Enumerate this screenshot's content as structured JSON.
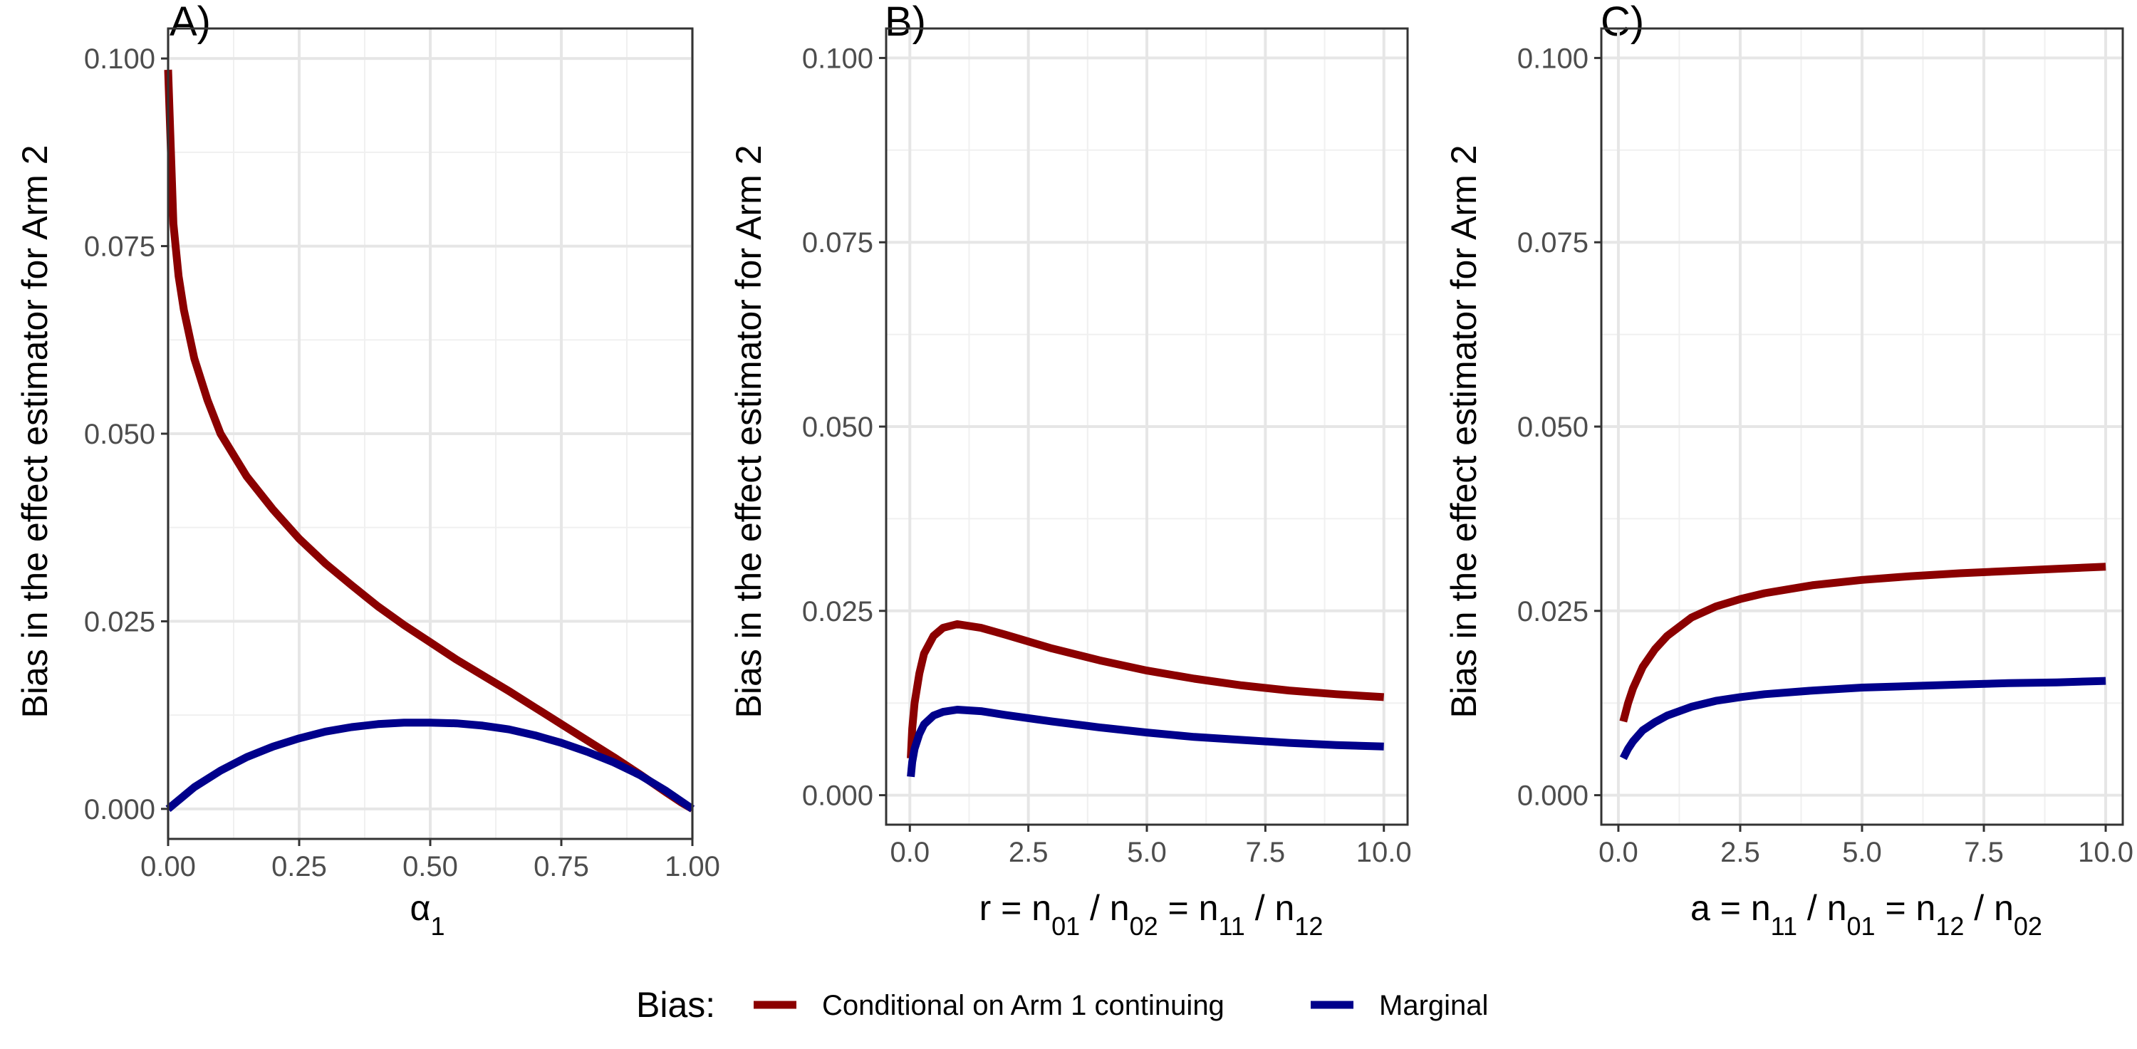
{
  "chart_data": [
    {
      "type": "line",
      "panel_label": "A)",
      "ylabel": "Bias in the effect estimator for Arm 2",
      "xlabel": "α1",
      "xlim": [
        0,
        1
      ],
      "ylim": [
        -0.004,
        0.104
      ],
      "x_ticks": [
        "0.00",
        "0.25",
        "0.50",
        "0.75",
        "1.00"
      ],
      "y_ticks": [
        "0.000",
        "0.025",
        "0.050",
        "0.075",
        "0.100"
      ],
      "series": [
        {
          "name": "Conditional on Arm 1 continuing",
          "color": "#8B0000",
          "x": [
            0.0,
            0.01,
            0.02,
            0.03,
            0.05,
            0.075,
            0.1,
            0.15,
            0.2,
            0.25,
            0.3,
            0.35,
            0.4,
            0.45,
            0.5,
            0.55,
            0.6,
            0.65,
            0.7,
            0.75,
            0.8,
            0.85,
            0.9,
            0.95,
            0.98,
            1.0
          ],
          "y": [
            0.0985,
            0.078,
            0.071,
            0.0665,
            0.06,
            0.0545,
            0.05,
            0.0443,
            0.0399,
            0.036,
            0.0327,
            0.0298,
            0.027,
            0.0245,
            0.0222,
            0.0199,
            0.0178,
            0.0157,
            0.0135,
            0.0113,
            0.0091,
            0.0069,
            0.0046,
            0.0022,
            0.0008,
            0.0
          ]
        },
        {
          "name": "Marginal",
          "color": "#00008B",
          "x": [
            0.0,
            0.05,
            0.1,
            0.15,
            0.2,
            0.25,
            0.3,
            0.35,
            0.4,
            0.45,
            0.5,
            0.55,
            0.6,
            0.65,
            0.7,
            0.75,
            0.8,
            0.85,
            0.9,
            0.95,
            1.0
          ],
          "y": [
            0.0,
            0.0029,
            0.0051,
            0.0069,
            0.0083,
            0.0094,
            0.0103,
            0.0109,
            0.0113,
            0.0115,
            0.0115,
            0.0114,
            0.0111,
            0.0106,
            0.0098,
            0.0088,
            0.0076,
            0.0062,
            0.0045,
            0.0024,
            0.0
          ]
        }
      ]
    },
    {
      "type": "line",
      "panel_label": "B)",
      "ylabel": "Bias in the effect estimator for Arm 2",
      "xlabel": "r = n01 / n02 = n11 / n12",
      "xlim": [
        -0.5,
        10.5
      ],
      "ylim": [
        -0.004,
        0.104
      ],
      "x_ticks": [
        "0.0",
        "2.5",
        "5.0",
        "7.5",
        "10.0"
      ],
      "y_ticks": [
        "0.000",
        "0.025",
        "0.050",
        "0.075",
        "0.100"
      ],
      "series": [
        {
          "name": "Conditional on Arm 1 continuing",
          "color": "#8B0000",
          "x": [
            0.02,
            0.05,
            0.1,
            0.2,
            0.3,
            0.5,
            0.7,
            1.0,
            1.5,
            2.0,
            3.0,
            4.0,
            5.0,
            6.0,
            7.0,
            8.0,
            9.0,
            10.0
          ],
          "y": [
            0.005,
            0.009,
            0.0125,
            0.0165,
            0.0192,
            0.0216,
            0.0227,
            0.0232,
            0.0227,
            0.0218,
            0.0199,
            0.0183,
            0.0169,
            0.0158,
            0.0149,
            0.0142,
            0.0137,
            0.0133
          ]
        },
        {
          "name": "Marginal",
          "color": "#00008B",
          "x": [
            0.02,
            0.05,
            0.1,
            0.2,
            0.3,
            0.5,
            0.7,
            1.0,
            1.5,
            2.0,
            3.0,
            4.0,
            5.0,
            6.0,
            7.0,
            8.0,
            9.0,
            10.0
          ],
          "y": [
            0.0025,
            0.0045,
            0.0063,
            0.0083,
            0.0096,
            0.0108,
            0.0113,
            0.0116,
            0.0114,
            0.0109,
            0.01,
            0.0092,
            0.0085,
            0.0079,
            0.0075,
            0.0071,
            0.0068,
            0.0066
          ]
        }
      ]
    },
    {
      "type": "line",
      "panel_label": "C)",
      "ylabel": "Bias in the effect estimator for Arm 2",
      "xlabel": "a = n11 / n01 = n12 / n02",
      "xlim": [
        -0.35,
        10.35
      ],
      "ylim": [
        -0.004,
        0.104
      ],
      "x_ticks": [
        "0.0",
        "2.5",
        "5.0",
        "7.5",
        "10.0"
      ],
      "y_ticks": [
        "0.000",
        "0.025",
        "0.050",
        "0.075",
        "0.100"
      ],
      "series": [
        {
          "name": "Conditional on Arm 1 continuing",
          "color": "#8B0000",
          "x": [
            0.1,
            0.2,
            0.3,
            0.5,
            0.75,
            1.0,
            1.5,
            2.0,
            2.5,
            3.0,
            4.0,
            5.0,
            6.0,
            7.0,
            8.0,
            9.0,
            10.0
          ],
          "y": [
            0.01,
            0.0125,
            0.0145,
            0.0174,
            0.0198,
            0.0216,
            0.0241,
            0.0256,
            0.0266,
            0.0274,
            0.0285,
            0.0292,
            0.0297,
            0.0301,
            0.0304,
            0.0307,
            0.031
          ]
        },
        {
          "name": "Marginal",
          "color": "#00008B",
          "x": [
            0.1,
            0.2,
            0.3,
            0.5,
            0.75,
            1.0,
            1.5,
            2.0,
            2.5,
            3.0,
            4.0,
            5.0,
            6.0,
            7.0,
            8.0,
            9.0,
            10.0
          ],
          "y": [
            0.005,
            0.0063,
            0.0073,
            0.0088,
            0.0099,
            0.0108,
            0.012,
            0.0128,
            0.0133,
            0.0137,
            0.0142,
            0.0146,
            0.0148,
            0.015,
            0.0152,
            0.0153,
            0.0155
          ]
        }
      ]
    }
  ],
  "legend": {
    "title": "Bias:",
    "items": [
      {
        "label": "Conditional on Arm 1 continuing",
        "color": "#8B0000"
      },
      {
        "label": "Marginal",
        "color": "#00008B"
      }
    ],
    "position": "bottom"
  }
}
